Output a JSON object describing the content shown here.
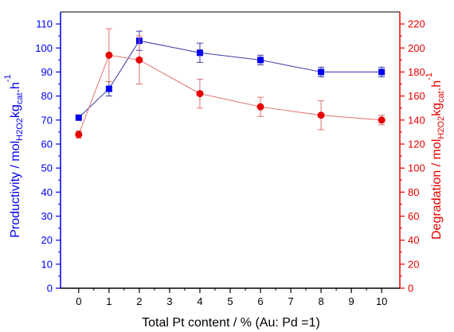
{
  "chart_data": {
    "type": "line",
    "xlabel": "Total Pt content / % (Au: Pd =1)",
    "ylabel_left": {
      "main": "Productivity / mol",
      "sub1": "H2O2",
      "mid": "kg",
      "sub2": "cat",
      "mid2": "h",
      "sup": "-1"
    },
    "ylabel_right": {
      "main": "Degradation / mol",
      "sub1": "H2O2",
      "mid": "kg",
      "sub2": "cat",
      "mid2": "h",
      "sup": "-1"
    },
    "xlim": [
      -0.6,
      10.6
    ],
    "x_ticks": [
      0,
      1,
      2,
      3,
      4,
      5,
      6,
      7,
      8,
      9,
      10
    ],
    "ylim_left": [
      0,
      115
    ],
    "ylim_right": [
      0,
      230
    ],
    "y_ticks_left": [
      0,
      10,
      20,
      30,
      40,
      50,
      60,
      70,
      80,
      90,
      100,
      110
    ],
    "y_ticks_right": [
      0,
      20,
      40,
      60,
      80,
      100,
      120,
      140,
      160,
      180,
      200,
      220
    ],
    "series": [
      {
        "axis": "left",
        "marker": "square",
        "color": "#0000ee",
        "line_color": "#3a3aaa",
        "x": [
          0,
          1,
          2,
          4,
          6,
          8,
          10
        ],
        "y": [
          71,
          83,
          103,
          98,
          95,
          90,
          90
        ],
        "err": [
          1,
          3,
          4,
          4,
          2,
          2,
          2
        ]
      },
      {
        "axis": "right",
        "marker": "circle",
        "color": "#e60000",
        "line_color": "#e07070",
        "x": [
          0,
          1,
          2,
          4,
          6,
          8,
          10
        ],
        "y": [
          128,
          194,
          190,
          162,
          151,
          144,
          140
        ],
        "err": [
          3,
          22,
          20,
          12,
          8,
          12,
          4
        ]
      }
    ]
  }
}
